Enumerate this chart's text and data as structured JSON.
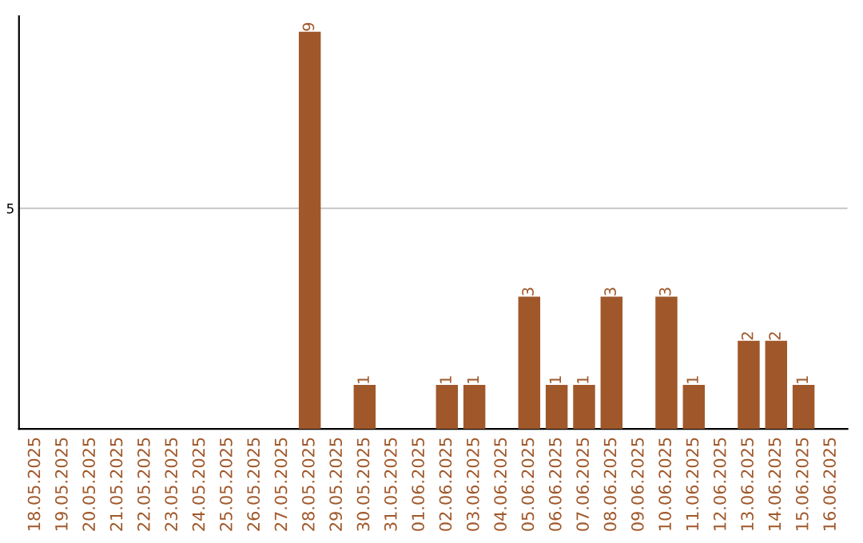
{
  "chart_data": {
    "type": "bar",
    "categories": [
      "18.05.2025",
      "19.05.2025",
      "20.05.2025",
      "21.05.2025",
      "22.05.2025",
      "23.05.2025",
      "24.05.2025",
      "25.05.2025",
      "26.05.2025",
      "27.05.2025",
      "28.05.2025",
      "29.05.2025",
      "30.05.2025",
      "31.05.2025",
      "01.06.2025",
      "02.06.2025",
      "03.06.2025",
      "04.06.2025",
      "05.06.2025",
      "06.06.2025",
      "07.06.2025",
      "08.06.2025",
      "09.06.2025",
      "10.06.2025",
      "11.06.2025",
      "12.06.2025",
      "13.06.2025",
      "14.06.2025",
      "15.06.2025",
      "16.06.2025"
    ],
    "values": [
      0,
      0,
      0,
      0,
      0,
      0,
      0,
      0,
      0,
      0,
      9,
      0,
      1,
      0,
      0,
      1,
      1,
      0,
      3,
      1,
      1,
      3,
      0,
      3,
      1,
      0,
      2,
      2,
      1,
      0
    ],
    "value_labels": [
      null,
      null,
      null,
      null,
      null,
      null,
      null,
      null,
      null,
      null,
      "9",
      null,
      "1",
      null,
      null,
      "1",
      "1",
      null,
      "3",
      "1",
      "1",
      "3",
      null,
      "3",
      "1",
      null,
      "2",
      "2",
      "1",
      null
    ],
    "color": "#a0582a",
    "ylim": [
      0,
      9.35
    ],
    "yticks": [
      5
    ],
    "grid": "y"
  }
}
